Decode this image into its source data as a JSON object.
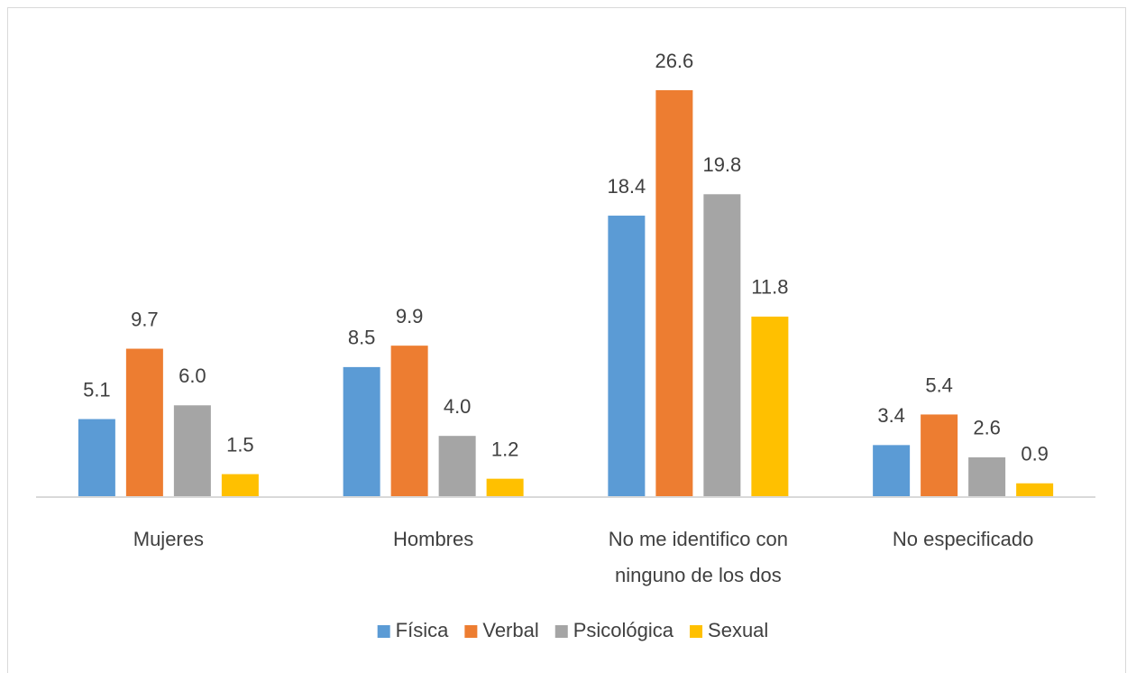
{
  "chart_data": {
    "type": "bar",
    "categories": [
      "Mujeres",
      "Hombres",
      "No me identifico con ninguno de los dos",
      "No especificado"
    ],
    "series": [
      {
        "name": "Física",
        "color": "#5b9bd5",
        "values": [
          5.1,
          8.5,
          18.4,
          3.4
        ],
        "value_labels": [
          "5.1",
          "8.5",
          "18.4",
          "3.4"
        ]
      },
      {
        "name": "Verbal",
        "color": "#ed7d31",
        "values": [
          9.7,
          9.9,
          26.6,
          5.4
        ],
        "value_labels": [
          "9.7",
          "9.9",
          "26.6",
          "5.4"
        ]
      },
      {
        "name": "Psicológica",
        "color": "#a5a5a5",
        "values": [
          6.0,
          4.0,
          19.8,
          2.6
        ],
        "value_labels": [
          "6.0",
          "4.0",
          "19.8",
          "2.6"
        ]
      },
      {
        "name": "Sexual",
        "color": "#ffc000",
        "values": [
          1.5,
          1.2,
          11.8,
          0.9
        ],
        "value_labels": [
          "1.5",
          "1.2",
          "11.8",
          "0.9"
        ]
      }
    ],
    "legend": "bottom"
  }
}
